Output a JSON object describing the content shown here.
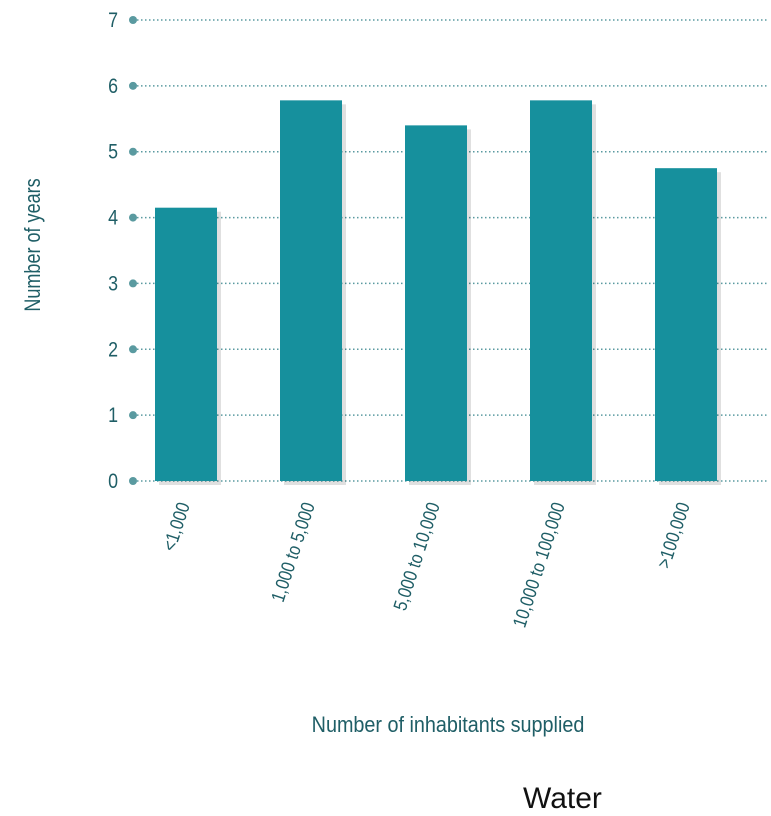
{
  "chart_data": {
    "type": "bar",
    "categories": [
      "<1,000",
      "1,000 to 5,000",
      "5,000 to 10,000",
      "10,000 to 100,000",
      ">100,000"
    ],
    "values": [
      4.15,
      5.78,
      5.4,
      5.78,
      4.75
    ],
    "xlabel": "Number of inhabitants supplied",
    "ylabel": "Number of years",
    "ylim": [
      0,
      7
    ],
    "yticks": [
      0,
      1,
      2,
      3,
      4,
      5,
      6,
      7
    ],
    "grid": true,
    "colors": {
      "bar": "#16909d",
      "text": "#1f5e66",
      "grid": "#5a9aa0",
      "tick_dot": "#5a9aa0"
    }
  },
  "footer": {
    "text": "Water"
  }
}
